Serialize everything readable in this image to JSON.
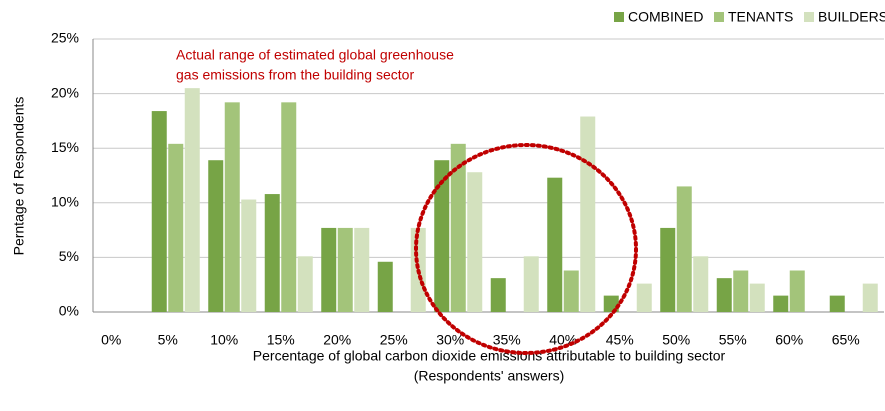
{
  "chart_data": {
    "type": "bar",
    "categories": [
      "0%",
      "5%",
      "10%",
      "15%",
      "20%",
      "25%",
      "30%",
      "35%",
      "40%",
      "45%",
      "50%",
      "55%",
      "60%",
      "65%"
    ],
    "series": [
      {
        "name": "COMBINED",
        "color": "#77a446",
        "values": [
          0,
          18.4,
          13.9,
          10.8,
          7.7,
          4.6,
          13.9,
          3.1,
          12.3,
          1.5,
          7.7,
          3.1,
          1.5,
          1.5
        ]
      },
      {
        "name": "TENANTS",
        "color": "#a3c47a",
        "values": [
          0,
          15.4,
          19.2,
          19.2,
          7.7,
          0,
          15.4,
          0,
          3.8,
          0,
          11.5,
          3.8,
          3.8,
          0
        ]
      },
      {
        "name": "BUILDERS",
        "color": "#d3e1be",
        "values": [
          0,
          20.5,
          10.3,
          5.1,
          7.7,
          7.7,
          12.8,
          5.1,
          17.9,
          2.6,
          5.1,
          2.6,
          0,
          2.6
        ]
      }
    ],
    "ylim": [
      0,
      25
    ],
    "yticks": [
      {
        "value": 0,
        "label": "0%"
      },
      {
        "value": 5,
        "label": "5%"
      },
      {
        "value": 10,
        "label": "10%"
      },
      {
        "value": 15,
        "label": "15%"
      },
      {
        "value": 20,
        "label": "20%"
      },
      {
        "value": 25,
        "label": "25%"
      }
    ],
    "grid": true,
    "legend": "top-right",
    "y_label": "Perntage of Respondents",
    "x_label": [
      "Percentage of global carbon dioxide emissions attributable to building sector",
      "(Respondents' answers)"
    ],
    "annotation": [
      "Actual range of estimated global greenhouse",
      "gas emissions from the building sector"
    ]
  }
}
